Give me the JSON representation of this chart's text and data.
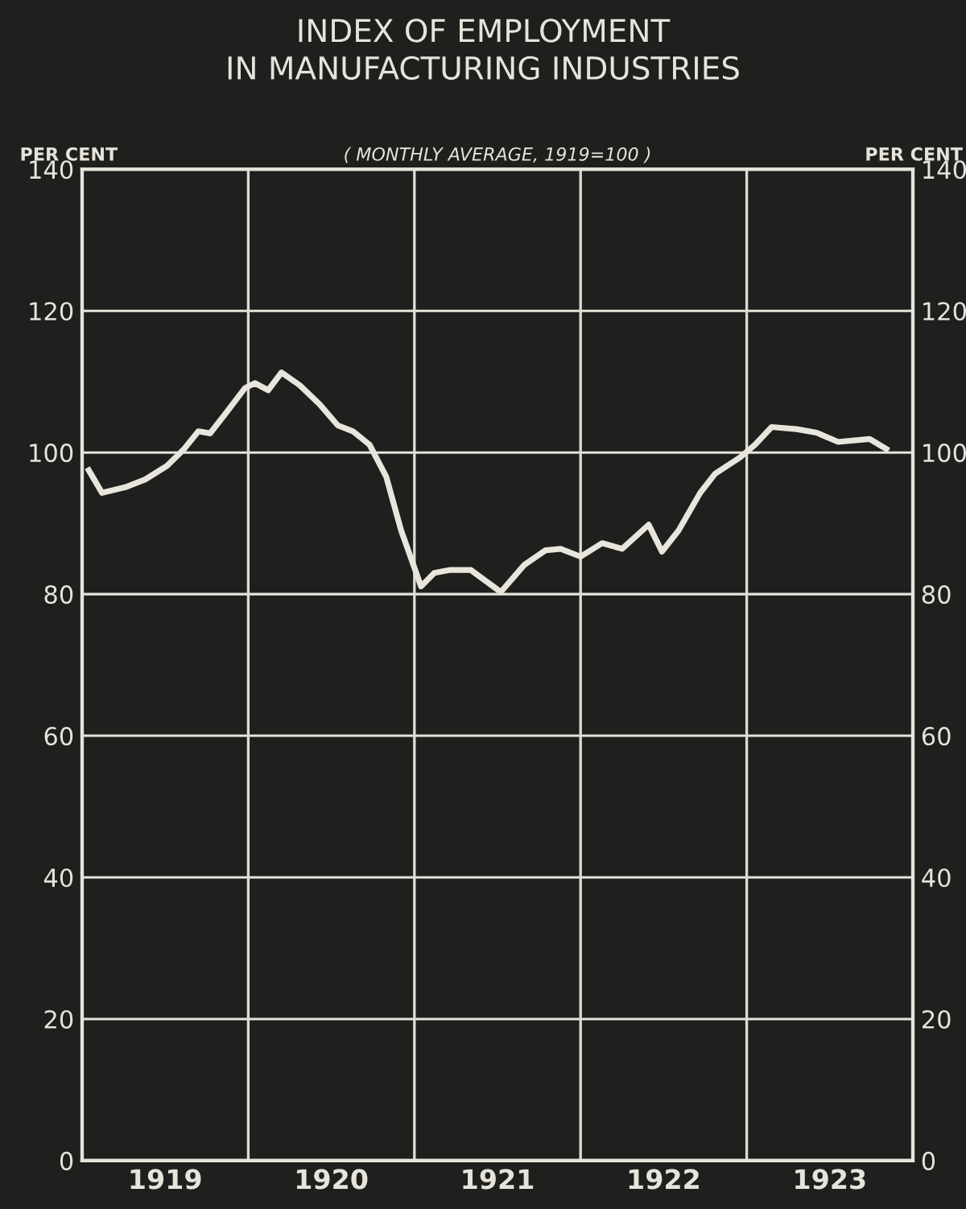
{
  "chart_data": {
    "type": "line",
    "title": "INDEX OF EMPLOYMENT\nIN MANUFACTURING INDUSTRIES",
    "subtitle": "( MONTHLY AVERAGE, 1919=100 )",
    "ylabel": "PER CENT",
    "y2label": "PER CENT",
    "x": [
      1919.04,
      1919.12,
      1919.26,
      1919.38,
      1919.51,
      1919.61,
      1919.7,
      1919.77,
      1919.87,
      1919.98,
      1920.04,
      1920.12,
      1920.2,
      1920.31,
      1920.43,
      1920.54,
      1920.63,
      1920.73,
      1920.83,
      1920.92,
      1921.04,
      1921.12,
      1921.21,
      1921.34,
      1921.52,
      1921.66,
      1921.79,
      1921.88,
      1922.0,
      1922.13,
      1922.25,
      1922.41,
      1922.49,
      1922.59,
      1922.72,
      1922.81,
      1922.96,
      1923.05,
      1923.15,
      1923.3,
      1923.42,
      1923.55,
      1923.74,
      1923.84
    ],
    "series": [
      {
        "color": "#e8e6dc",
        "values": [
          97.5,
          94.3,
          95.1,
          96.2,
          98.1,
          100.4,
          103,
          102.7,
          105.7,
          109.1,
          109.8,
          108.8,
          111.3,
          109.5,
          106.8,
          103.8,
          103,
          101.1,
          96.6,
          89,
          81.1,
          83,
          83.4,
          83.4,
          80.3,
          84.1,
          86.2,
          86.4,
          85.3,
          87.2,
          86.4,
          89.8,
          86,
          89,
          94.3,
          97,
          99.3,
          101.1,
          103.6,
          103.3,
          102.8,
          101.5,
          101.9,
          100.5
        ]
      }
    ],
    "xlim": [
      1919,
      1924
    ],
    "xticks": [
      {
        "value": 1919.5,
        "label": "1919"
      },
      {
        "value": 1920.5,
        "label": "1920"
      },
      {
        "value": 1921.5,
        "label": "1921"
      },
      {
        "value": 1922.5,
        "label": "1922"
      },
      {
        "value": 1923.5,
        "label": "1923"
      }
    ],
    "ylim": [
      0,
      140
    ],
    "yticks": [
      0,
      20,
      40,
      60,
      80,
      100,
      120,
      140
    ],
    "y2lim": [
      0,
      140
    ],
    "y2ticks": [
      0,
      20,
      40,
      60,
      80,
      100,
      120,
      140
    ],
    "ref_lines": [
      {
        "axis": "x",
        "value": 1920,
        "color": "#dcdcd4"
      },
      {
        "axis": "x",
        "value": 1921,
        "color": "#dcdcd4"
      },
      {
        "axis": "x",
        "value": 1922,
        "color": "#dcdcd4"
      },
      {
        "axis": "x",
        "value": 1923,
        "color": "#dcdcd4"
      }
    ],
    "grid": "y",
    "legend": false,
    "marker": "none",
    "line_style": "solid"
  }
}
